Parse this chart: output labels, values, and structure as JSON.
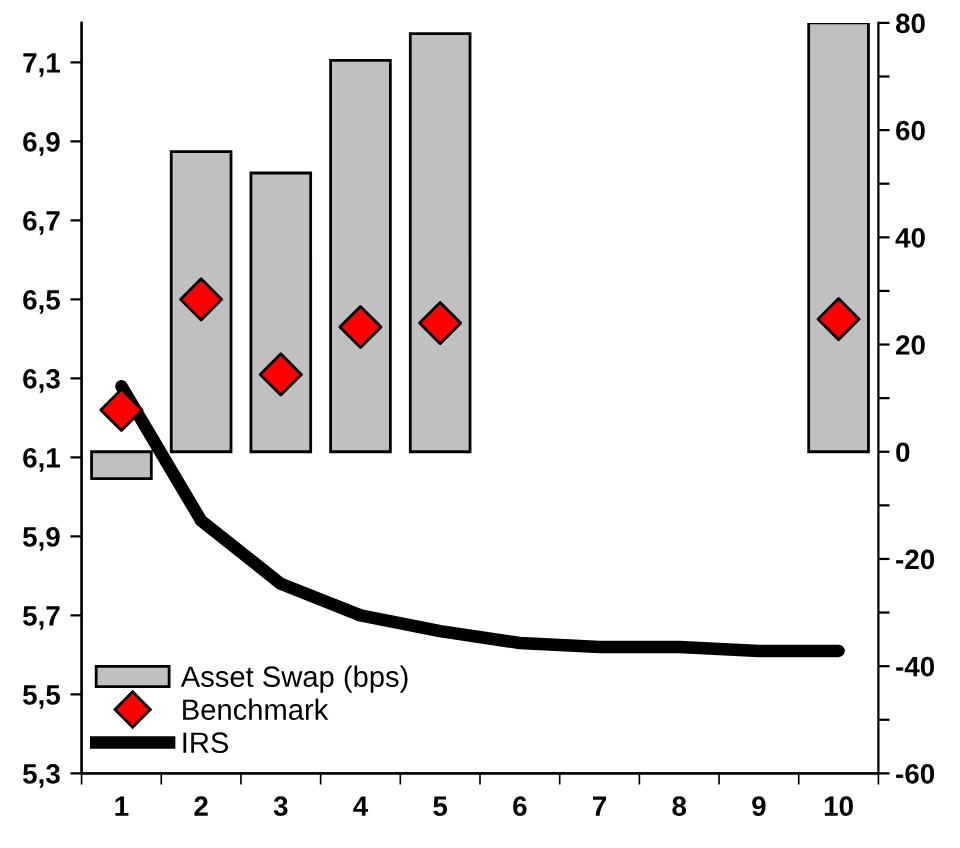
{
  "chart_data": {
    "type": "bar",
    "categories": [
      "1",
      "2",
      "3",
      "4",
      "5",
      "6",
      "7",
      "8",
      "9",
      "10"
    ],
    "series": [
      {
        "name": "Asset Swap (bps)",
        "axis": "y2",
        "color": "#c0c0c0",
        "values": [
          -5,
          56,
          52,
          73,
          78,
          null,
          null,
          null,
          null,
          80
        ]
      },
      {
        "name": "Benchmark",
        "type": "scatter",
        "color": "#ff0000",
        "marker": "diamond",
        "values": [
          6.22,
          6.5,
          6.31,
          6.43,
          6.44,
          null,
          null,
          null,
          null,
          6.45
        ]
      },
      {
        "name": "IRS",
        "type": "line",
        "color": "#000000",
        "marker": "none",
        "line_style": "solid",
        "values": [
          6.28,
          5.94,
          5.78,
          5.7,
          5.66,
          5.63,
          5.62,
          5.62,
          5.61,
          5.61
        ]
      }
    ],
    "ylim": [
      5.3,
      7.2
    ],
    "yticks": [
      {
        "value": 5.3,
        "label": "5,3"
      },
      {
        "value": 5.5,
        "label": "5,5"
      },
      {
        "value": 5.7,
        "label": "5,7"
      },
      {
        "value": 5.9,
        "label": "5,9"
      },
      {
        "value": 6.1,
        "label": "6,1"
      },
      {
        "value": 6.3,
        "label": "6,3"
      },
      {
        "value": 6.5,
        "label": "6,5"
      },
      {
        "value": 6.7,
        "label": "6,7"
      },
      {
        "value": 6.9,
        "label": "6,9"
      },
      {
        "value": 7.1,
        "label": "7,1"
      }
    ],
    "y2lim": [
      -60,
      80
    ],
    "y2ticks": [
      -60,
      {
        "value": -50,
        "label": null
      },
      -40,
      {
        "value": -30,
        "label": null
      },
      -20,
      {
        "value": -10,
        "label": null
      },
      0,
      {
        "value": 10,
        "label": null
      },
      20,
      {
        "value": 30,
        "label": null
      },
      40,
      {
        "value": 50,
        "label": null
      },
      60,
      {
        "value": 70,
        "label": null
      },
      80
    ],
    "grid": false,
    "legend": "bottom left"
  }
}
